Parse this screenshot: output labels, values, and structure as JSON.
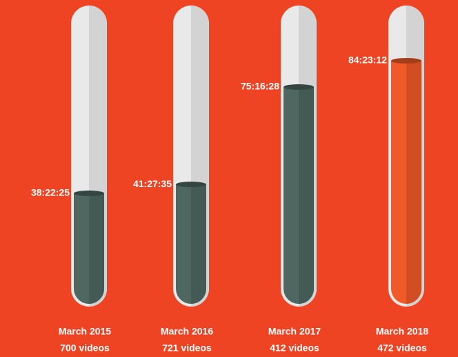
{
  "chart_data": {
    "type": "tube",
    "categories": [
      "March 2015",
      "March 2016",
      "March 2017",
      "March 2018"
    ],
    "counts": [
      "700 videos",
      "721 videos",
      "412 videos",
      "472 videos"
    ],
    "values": [
      138145,
      149255,
      270988,
      303792
    ],
    "value_labels": [
      "38:22:25",
      "41:27:35",
      "75:16:28",
      "84:23:12"
    ],
    "colors": [
      "#4e6761",
      "#4e6761",
      "#4e6761",
      "#f05a28"
    ],
    "background": "#ef4423"
  }
}
